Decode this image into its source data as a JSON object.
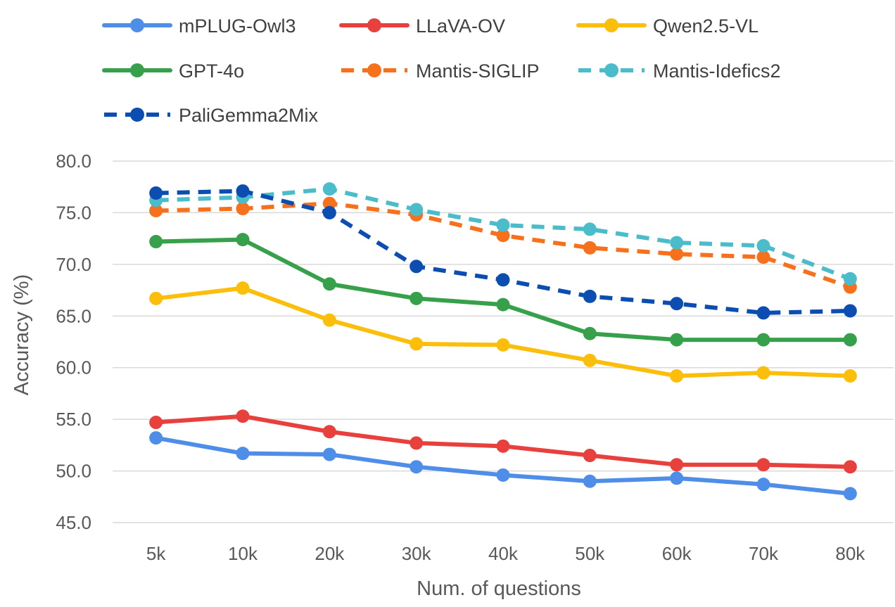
{
  "chart_data": {
    "type": "line",
    "title": "",
    "xlabel": "Num. of questions",
    "ylabel": "Accuracy (%)",
    "categories": [
      "5k",
      "10k",
      "20k",
      "30k",
      "40k",
      "50k",
      "60k",
      "70k",
      "80k"
    ],
    "ylim": [
      45.0,
      80.0
    ],
    "yticks": [
      "45.0",
      "50.0",
      "55.0",
      "60.0",
      "65.0",
      "70.0",
      "75.0",
      "80.0"
    ],
    "grid": true,
    "legend_position": "top",
    "series": [
      {
        "name": "mPLUG-Owl3",
        "color": "#4e8de8",
        "dashed": false,
        "values": [
          53.2,
          51.7,
          51.6,
          50.4,
          49.6,
          49.0,
          49.3,
          48.7,
          47.8
        ]
      },
      {
        "name": "LLaVA-OV",
        "color": "#e8403d",
        "dashed": false,
        "values": [
          54.7,
          55.3,
          53.8,
          52.7,
          52.4,
          51.5,
          50.6,
          50.6,
          50.4
        ]
      },
      {
        "name": "Qwen2.5-VL",
        "color": "#fbbe0b",
        "dashed": false,
        "values": [
          66.7,
          67.7,
          64.6,
          62.3,
          62.2,
          60.7,
          59.2,
          59.5,
          59.2
        ]
      },
      {
        "name": "GPT-4o",
        "color": "#37a04b",
        "dashed": false,
        "values": [
          72.2,
          72.4,
          68.1,
          66.7,
          66.1,
          63.3,
          62.7,
          62.7,
          62.7
        ]
      },
      {
        "name": "Mantis-SIGLIP",
        "color": "#f7711c",
        "dashed": true,
        "values": [
          75.2,
          75.4,
          75.9,
          74.8,
          72.8,
          71.6,
          71.0,
          70.7,
          67.8
        ]
      },
      {
        "name": "Mantis-Idefics2",
        "color": "#4bbdca",
        "dashed": true,
        "values": [
          76.2,
          76.5,
          77.3,
          75.3,
          73.8,
          73.4,
          72.1,
          71.8,
          68.6
        ]
      },
      {
        "name": "PaliGemma2Mix",
        "color": "#0b4db0",
        "dashed": true,
        "values": [
          76.9,
          77.1,
          75.0,
          69.8,
          68.5,
          66.9,
          66.2,
          65.3,
          65.5
        ]
      }
    ]
  }
}
